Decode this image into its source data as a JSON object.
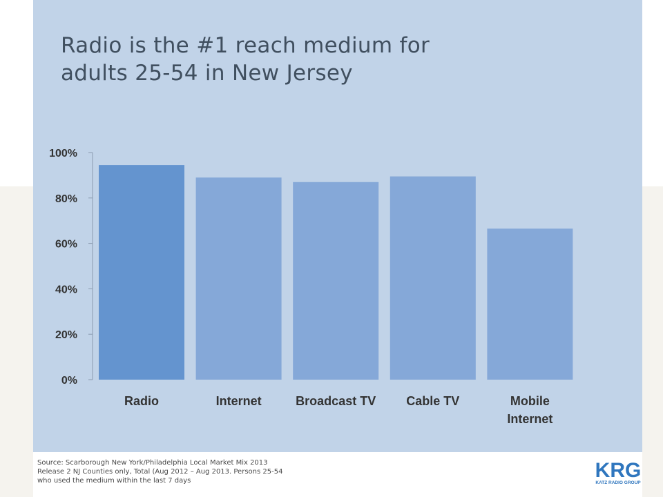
{
  "slide": {
    "title_line1": "Radio is the #1 reach medium for",
    "title_line2": "adults 25-54 in New Jersey",
    "source_line1": "Source: Scarborough New York/Philadelphia Local Market Mix 2013",
    "source_line2": "Release 2 NJ Counties only, Total (Aug 2012 – Aug 2013. Persons 25-54",
    "source_line3": "who used the medium within the last 7 days",
    "logo_text": "KRG",
    "logo_subtext": "KATZ RADIO GROUP",
    "colors": {
      "panel": "#c1d3e8",
      "bar_highlight": "#6494cf",
      "bar": "#85a8d8",
      "logo": "#2f76be"
    }
  },
  "chart_data": {
    "type": "bar",
    "title": "",
    "xlabel": "",
    "ylabel": "",
    "categories": [
      [
        "Radio"
      ],
      [
        "Internet"
      ],
      [
        "Broadcast TV"
      ],
      [
        "Cable TV"
      ],
      [
        "Mobile",
        "Internet"
      ]
    ],
    "values": [
      94.5,
      89,
      87,
      89.5,
      66.5
    ],
    "ylim": [
      0,
      100
    ],
    "yticks": [
      0,
      20,
      40,
      60,
      80,
      100
    ],
    "ytick_labels": [
      "0%",
      "20%",
      "40%",
      "60%",
      "80%",
      "100%"
    ],
    "grid": false,
    "legend": "none"
  }
}
